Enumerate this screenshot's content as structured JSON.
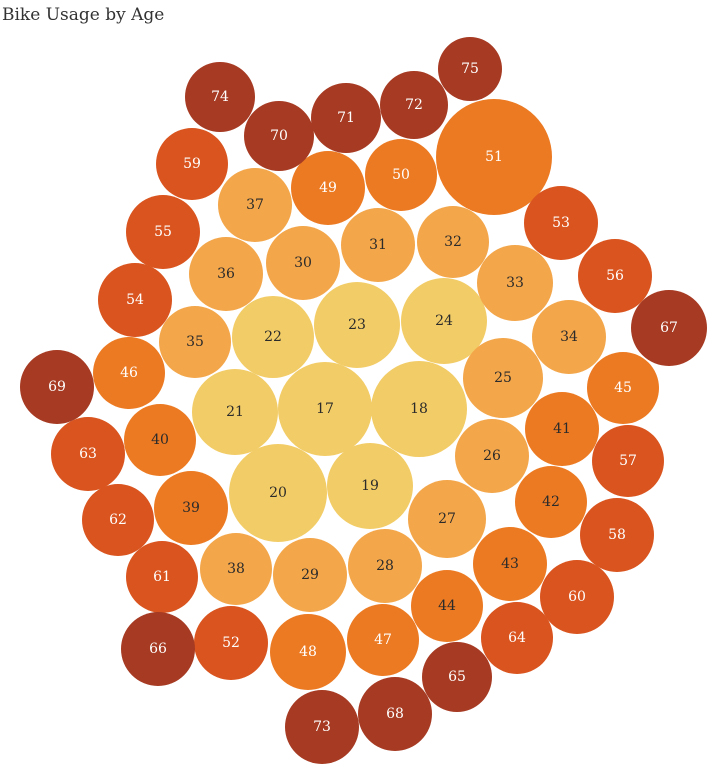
{
  "chart_data": {
    "type": "bubble",
    "title": "Bike Usage by Age",
    "xlabel": "",
    "ylabel": "",
    "color_scale": [
      "#f2cc66",
      "#f3a64a",
      "#ec7a22",
      "#d9541e",
      "#a63a22"
    ],
    "bubbles": [
      {
        "label": "17"
      },
      {
        "label": "18"
      },
      {
        "label": "19"
      },
      {
        "label": "20"
      },
      {
        "label": "21"
      },
      {
        "label": "22"
      },
      {
        "label": "23"
      },
      {
        "label": "24"
      },
      {
        "label": "25"
      },
      {
        "label": "26"
      },
      {
        "label": "27"
      },
      {
        "label": "28"
      },
      {
        "label": "29"
      },
      {
        "label": "30"
      },
      {
        "label": "31"
      },
      {
        "label": "32"
      },
      {
        "label": "33"
      },
      {
        "label": "34"
      },
      {
        "label": "35"
      },
      {
        "label": "36"
      },
      {
        "label": "37"
      },
      {
        "label": "38"
      },
      {
        "label": "39"
      },
      {
        "label": "40"
      },
      {
        "label": "41"
      },
      {
        "label": "42"
      },
      {
        "label": "43"
      },
      {
        "label": "44"
      },
      {
        "label": "45"
      },
      {
        "label": "46"
      },
      {
        "label": "47"
      },
      {
        "label": "48"
      },
      {
        "label": "49"
      },
      {
        "label": "50"
      },
      {
        "label": "51"
      },
      {
        "label": "52"
      },
      {
        "label": "53"
      },
      {
        "label": "54"
      },
      {
        "label": "55"
      },
      {
        "label": "56"
      },
      {
        "label": "57"
      },
      {
        "label": "58"
      },
      {
        "label": "59"
      },
      {
        "label": "60"
      },
      {
        "label": "61"
      },
      {
        "label": "62"
      },
      {
        "label": "63"
      },
      {
        "label": "64"
      },
      {
        "label": "65"
      },
      {
        "label": "66"
      },
      {
        "label": "67"
      },
      {
        "label": "68"
      },
      {
        "label": "69"
      },
      {
        "label": "70"
      },
      {
        "label": "71"
      },
      {
        "label": "72"
      },
      {
        "label": "73"
      },
      {
        "label": "74"
      },
      {
        "label": "75"
      }
    ]
  }
}
